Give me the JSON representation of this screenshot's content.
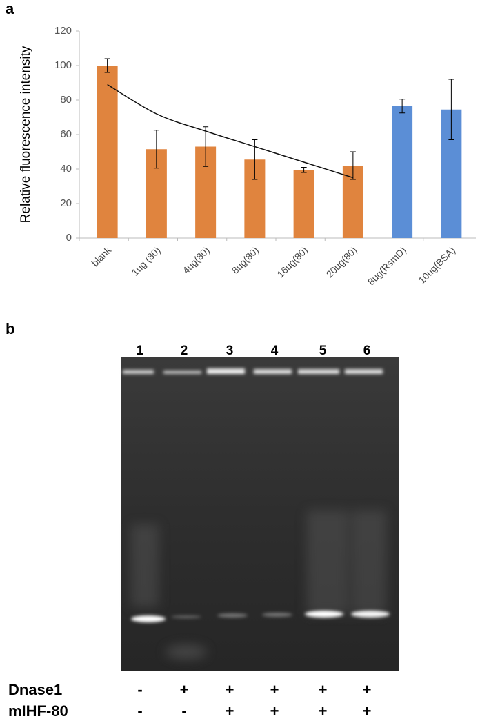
{
  "panel_labels": [
    "a",
    "b"
  ],
  "chart_data": {
    "type": "bar",
    "y_label": "Relative fluorescence intensity",
    "categories": [
      "blank",
      "1ug (80)",
      "4ug(80)",
      "8ug(80)",
      "16ug(80)",
      "20ug(80)",
      "8ug(RsmD)",
      "10ug(BSA)"
    ],
    "values": [
      100,
      51.5,
      53,
      45.5,
      39.5,
      42,
      76.5,
      74.5
    ],
    "errors": [
      4,
      11,
      11.5,
      11.5,
      1.5,
      8,
      4,
      17.5
    ],
    "colors": [
      "#e0843e",
      "#e0843e",
      "#e0843e",
      "#e0843e",
      "#e0843e",
      "#e0843e",
      "#5b8ed6",
      "#5b8ed6"
    ],
    "trendline": [
      89,
      72,
      62,
      53,
      44,
      35,
      null,
      null
    ],
    "ylim": [
      0,
      120
    ],
    "yticks": [
      0,
      20,
      40,
      60,
      80,
      100,
      120
    ],
    "grid": false
  },
  "gel": {
    "lanes": [
      "1",
      "2",
      "3",
      "4",
      "5",
      "6"
    ],
    "rows": [
      {
        "label": "Dnase1",
        "signs": [
          "-",
          "+",
          "+",
          "+",
          "+",
          "+"
        ]
      },
      {
        "label": "mIHF-80",
        "signs": [
          "-",
          "-",
          "+",
          "+",
          "+",
          "+"
        ]
      }
    ]
  }
}
